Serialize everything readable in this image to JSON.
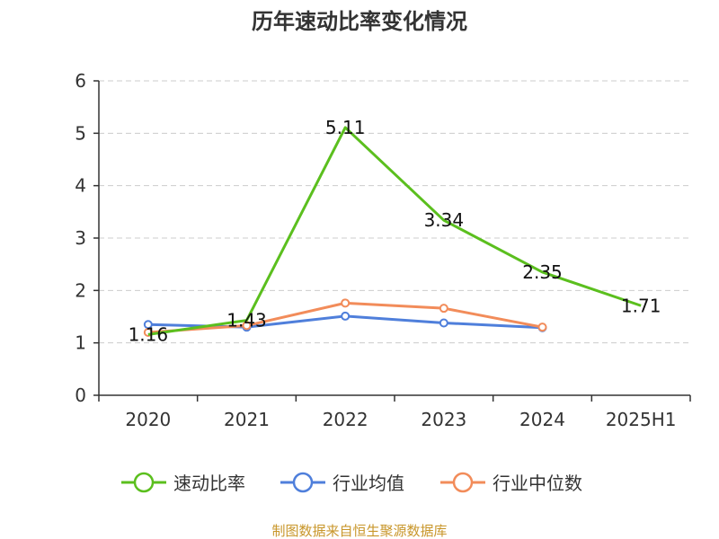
{
  "chart_data": {
    "type": "line",
    "title": "历年速动比率变化情况",
    "categories": [
      "2020",
      "2021",
      "2022",
      "2023",
      "2024",
      "2025H1"
    ],
    "ylim": [
      0,
      6
    ],
    "yticks": [
      "0",
      "1",
      "2",
      "3",
      "4",
      "5",
      "6"
    ],
    "grid": true,
    "legend_position": "bottom",
    "series": [
      {
        "name": "速动比率",
        "color": "#5bbf1e",
        "values": [
          1.16,
          1.43,
          5.11,
          3.34,
          2.35,
          1.71
        ],
        "labels": [
          "1.16",
          "1.43",
          "5.11",
          "3.34",
          "2.35",
          "1.71"
        ],
        "markers": [
          false,
          false,
          false,
          false,
          false,
          false
        ]
      },
      {
        "name": "行业均值",
        "color": "#4f7fdb",
        "values": [
          1.35,
          1.3,
          1.51,
          1.38,
          1.29,
          null
        ],
        "markers": [
          true,
          true,
          true,
          true,
          true,
          false
        ]
      },
      {
        "name": "行业中位数",
        "color": "#f28c5a",
        "values": [
          1.2,
          1.33,
          1.76,
          1.66,
          1.3,
          null
        ],
        "markers": [
          true,
          true,
          true,
          true,
          true,
          false
        ]
      }
    ]
  },
  "footer": {
    "source": "制图数据来自恒生聚源数据库",
    "color": "#c8962a"
  }
}
